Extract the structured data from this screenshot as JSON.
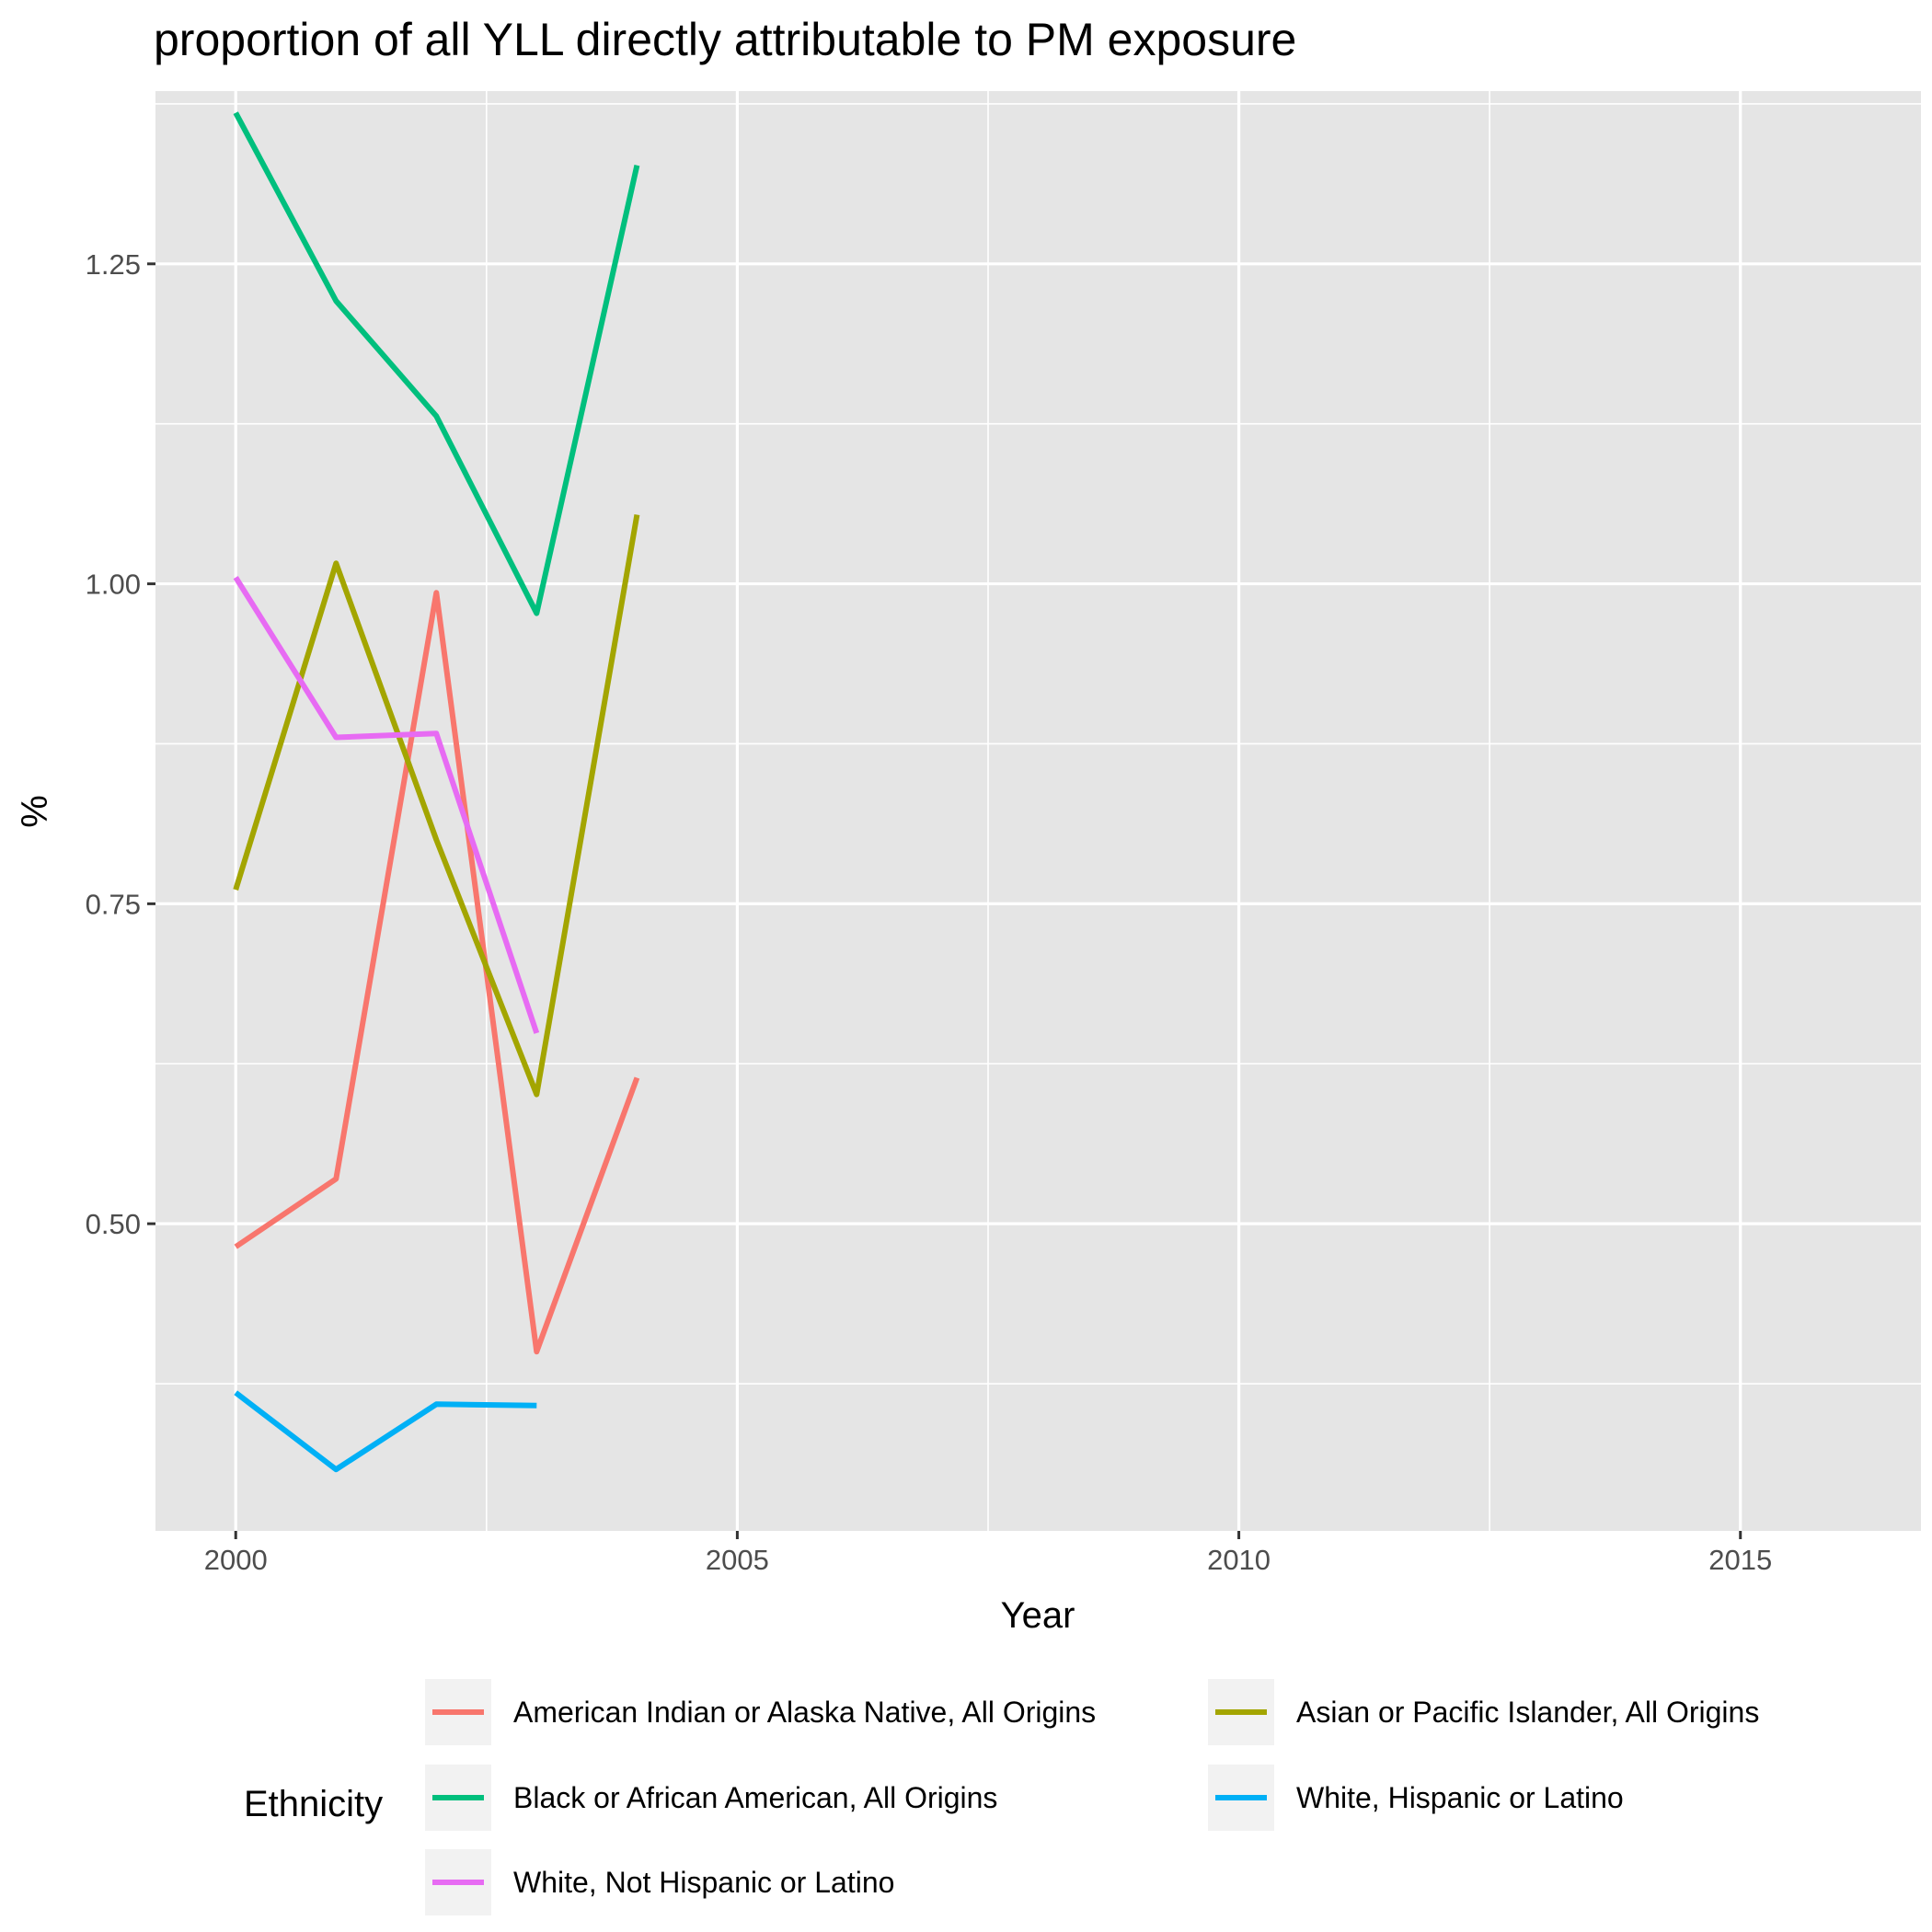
{
  "chart_data": {
    "type": "line",
    "title": "proportion of all YLL directly attributable to PM exposure",
    "xlabel": "Year",
    "ylabel": "%",
    "xlim": [
      1999.2,
      2016.8
    ],
    "ylim": [
      0.26,
      1.385
    ],
    "x_ticks": [
      2000,
      2005,
      2010,
      2015
    ],
    "y_ticks": [
      0.5,
      0.75,
      1.0,
      1.25
    ],
    "x_tick_labels": [
      "2000",
      "2005",
      "2010",
      "2015"
    ],
    "y_tick_labels": [
      "0.50",
      "0.75",
      "1.00",
      "1.25"
    ],
    "grid": true,
    "legend": {
      "title": "Ethnicity",
      "position": "bottom"
    },
    "series": [
      {
        "name": "American Indian or Alaska Native, All Origins",
        "color": "#F8766D",
        "x": [
          2000,
          2001,
          2002,
          2003,
          2004
        ],
        "y": [
          0.482,
          0.535,
          0.993,
          0.4,
          0.614
        ]
      },
      {
        "name": "Asian or Pacific Islander, All Origins",
        "color": "#A3A500",
        "x": [
          2000,
          2001,
          2002,
          2003,
          2004
        ],
        "y": [
          0.761,
          1.016,
          0.8,
          0.601,
          1.054
        ]
      },
      {
        "name": "Black or African American, All Origins",
        "color": "#00BF7D",
        "x": [
          2000,
          2001,
          2002,
          2003,
          2004
        ],
        "y": [
          1.368,
          1.221,
          1.131,
          0.977,
          1.327
        ]
      },
      {
        "name": "White, Hispanic or Latino",
        "color": "#00B0F6",
        "x": [
          2000,
          2001,
          2002,
          2003
        ],
        "y": [
          0.368,
          0.308,
          0.359,
          0.358
        ]
      },
      {
        "name": "White, Not Hispanic or Latino",
        "color": "#E76BF3",
        "x": [
          2000,
          2001,
          2002,
          2003
        ],
        "y": [
          1.005,
          0.88,
          0.883,
          0.649
        ]
      }
    ]
  }
}
